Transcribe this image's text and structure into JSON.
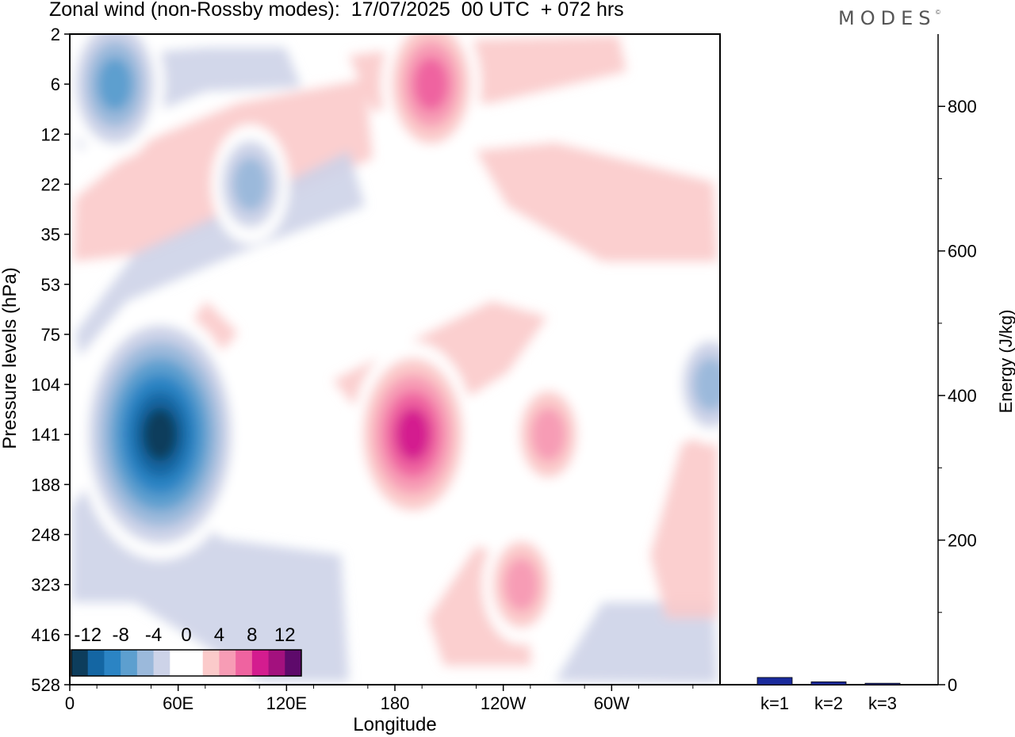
{
  "header": {
    "title": "Zonal wind (non-Rossby modes):  17/07/2025  00 UTC  + 072 hrs",
    "brand": "MODES",
    "brand_mark": "©"
  },
  "chart_data": [
    {
      "type": "heatmap",
      "title": "Zonal wind (non-Rossby modes):  17/07/2025  00 UTC  + 072 hrs",
      "xlabel": "Longitude",
      "ylabel": "Pressure levels (hPa)",
      "x_ticks": [
        "0",
        "60E",
        "120E",
        "180",
        "120W",
        "60W"
      ],
      "x_tick_values": [
        0,
        60,
        120,
        180,
        240,
        300
      ],
      "xlim": [
        0,
        360
      ],
      "y_ticks": [
        "2",
        "6",
        "12",
        "22",
        "35",
        "53",
        "75",
        "104",
        "141",
        "188",
        "248",
        "323",
        "416",
        "528"
      ],
      "y_axis": "pressure levels, top to bottom",
      "colorbar": {
        "labels": [
          "-12",
          "-8",
          "-4",
          "0",
          "4",
          "8",
          "12"
        ],
        "label_values": [
          -12,
          -8,
          -4,
          0,
          4,
          8,
          12
        ],
        "bounds": [
          -14,
          14
        ],
        "step": 2,
        "colors": [
          "#0d3d5c",
          "#1466a3",
          "#2b84c4",
          "#5d9fcf",
          "#9bb9db",
          "#cdd3e8",
          "#ffffff",
          "#ffffff",
          "#fbcaca",
          "#f79cb5",
          "#ef63a0",
          "#d41c8f",
          "#a3117e",
          "#5e0a6b"
        ]
      },
      "features": [
        {
          "name": "negative core",
          "lon": 50,
          "level": "141",
          "value": -14
        },
        {
          "name": "positive core",
          "lon": 190,
          "level": "141",
          "value": 10
        },
        {
          "name": "upper positive band",
          "lon": 200,
          "level": "6",
          "value": 8
        },
        {
          "name": "upper negative band",
          "lon": 25,
          "level": "6",
          "value": -8
        },
        {
          "name": "stratospheric negative band",
          "lon": 100,
          "level": "22",
          "value": -6
        },
        {
          "name": "positive patch",
          "lon": 250,
          "level": "323",
          "value": 6
        },
        {
          "name": "positive patch",
          "lon": 265,
          "level": "141",
          "value": 6
        },
        {
          "name": "negative patch",
          "lon": 355,
          "level": "104",
          "value": -6
        }
      ]
    },
    {
      "type": "bar",
      "categories": [
        "k=1",
        "k=2",
        "k=3"
      ],
      "values": [
        10,
        4,
        2
      ],
      "ylabel": "Energy (J/kg)",
      "ylim": [
        0,
        900
      ],
      "y_ticks": [
        0,
        200,
        400,
        600,
        800
      ],
      "bar_color": "#1a2a9c"
    }
  ]
}
